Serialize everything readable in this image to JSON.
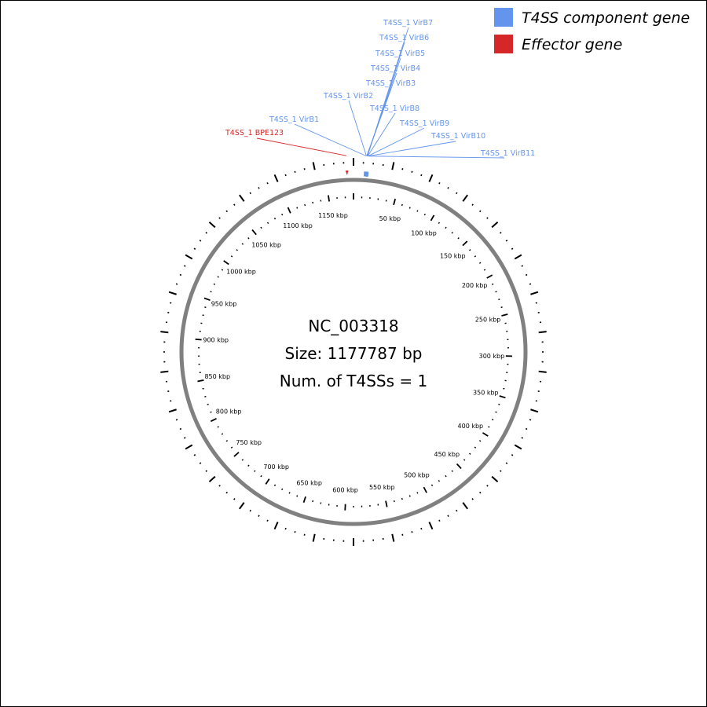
{
  "genome": {
    "accession": "NC_003318",
    "size_label": "Size: 1177787 bp",
    "t4ss_count_label": "Num. of T4SSs = 1",
    "length_bp": 1177787
  },
  "legend": {
    "items": [
      {
        "label": "T4SS component gene",
        "color": "#6495ed"
      },
      {
        "label": "Effector gene",
        "color": "#d62728"
      }
    ]
  },
  "colors": {
    "component": "#6495ed",
    "effector": "#d62728",
    "backbone": "#808080",
    "ticks": "#000000"
  },
  "scale": {
    "step_kbp": 50,
    "labels": [
      "50 kbp",
      "100 kbp",
      "150 kbp",
      "200 kbp",
      "250 kbp",
      "300 kbp",
      "350 kbp",
      "400 kbp",
      "450 kbp",
      "500 kbp",
      "550 kbp",
      "600 kbp",
      "650 kbp",
      "700 kbp",
      "750 kbp",
      "800 kbp",
      "850 kbp",
      "900 kbp",
      "950 kbp",
      "1000 kbp",
      "1050 kbp",
      "1100 kbp",
      "1150 kbp"
    ]
  },
  "genes": [
    {
      "label": "T4SS_1 VirB1",
      "type": "component",
      "position_kbp": 12.0
    },
    {
      "label": "T4SS_1 VirB2",
      "type": "component",
      "position_kbp": 12.3
    },
    {
      "label": "T4SS_1 VirB3",
      "type": "component",
      "position_kbp": 12.6
    },
    {
      "label": "T4SS_1 VirB4",
      "type": "component",
      "position_kbp": 12.8
    },
    {
      "label": "T4SS_1 VirB5",
      "type": "component",
      "position_kbp": 13.0
    },
    {
      "label": "T4SS_1 VirB6",
      "type": "component",
      "position_kbp": 13.2
    },
    {
      "label": "T4SS_1 VirB7",
      "type": "component",
      "position_kbp": 13.4
    },
    {
      "label": "T4SS_1 VirB8",
      "type": "component",
      "position_kbp": 13.6
    },
    {
      "label": "T4SS_1 VirB9",
      "type": "component",
      "position_kbp": 13.9
    },
    {
      "label": "T4SS_1 VirB10",
      "type": "component",
      "position_kbp": 14.2
    },
    {
      "label": "T4SS_1 VirB11",
      "type": "component",
      "position_kbp": 14.6
    },
    {
      "label": "T4SS_1 BPE123",
      "type": "effector",
      "position_kbp": 1171.0
    }
  ]
}
